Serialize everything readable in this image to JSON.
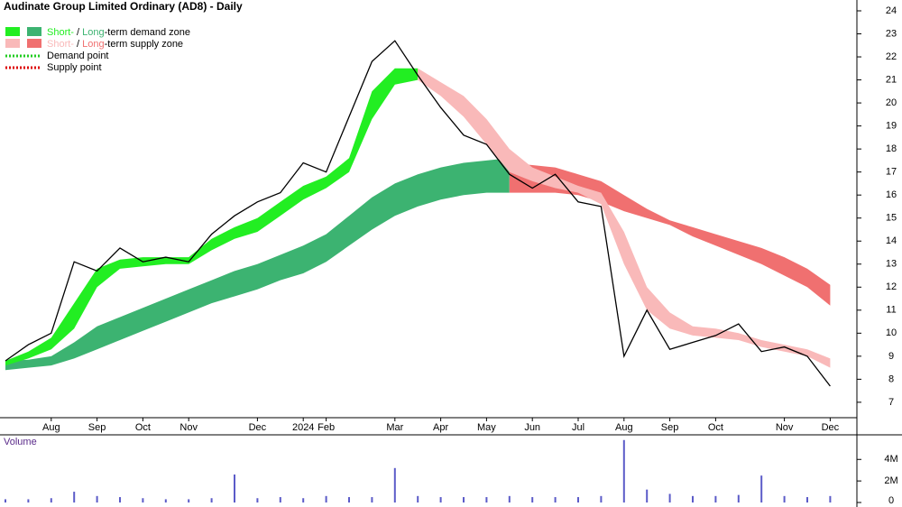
{
  "chart_data": {
    "type": "line",
    "title": "Audinate Group Limited Ordinary (AD8) - Daily",
    "categories": [
      null,
      null,
      "Aug",
      null,
      "Sep",
      null,
      "Oct",
      null,
      "Nov",
      null,
      null,
      "Dec",
      null,
      "2024",
      "Feb",
      null,
      null,
      "Mar",
      null,
      "Apr",
      null,
      "May",
      null,
      "Jun",
      null,
      "Jul",
      null,
      "Aug",
      null,
      "Sep",
      null,
      "Oct",
      null,
      null,
      "Nov",
      null,
      "Dec"
    ],
    "values": [
      8.8,
      9.5,
      10.0,
      13.1,
      12.7,
      13.7,
      13.1,
      13.3,
      13.1,
      14.3,
      15.1,
      15.7,
      16.1,
      17.4,
      17.0,
      19.4,
      21.8,
      22.7,
      21.2,
      19.8,
      18.6,
      18.2,
      16.9,
      16.3,
      16.9,
      15.7,
      15.5,
      9.0,
      11.0,
      9.3,
      9.6,
      9.9,
      10.4,
      9.2,
      9.4,
      9.0,
      7.7
    ],
    "color": "#000000",
    "ylim": [
      6.33,
      24.47
    ],
    "yticks": [
      7,
      8,
      9,
      10,
      11,
      12,
      13,
      14,
      15,
      16,
      17,
      18,
      19,
      20,
      21,
      22,
      23,
      24
    ],
    "demand_zone": {
      "label_parts": [
        "Short-",
        " / ",
        "Long",
        "-term demand zone"
      ],
      "short": {
        "color": "#22ee22",
        "lower": [
          8.6,
          8.9,
          9.3,
          10.2,
          12.0,
          12.8,
          12.9,
          13.0,
          13.0,
          13.6,
          14.1,
          14.4,
          15.1,
          15.8,
          16.3,
          17.0,
          19.3,
          20.8,
          21.0,
          null,
          null,
          null,
          null,
          null,
          null,
          null,
          null,
          null,
          null,
          null,
          null,
          null,
          null,
          null,
          null,
          null,
          null
        ],
        "upper": [
          8.8,
          9.2,
          9.8,
          11.3,
          12.8,
          13.2,
          13.3,
          13.3,
          13.3,
          14.1,
          14.6,
          15.0,
          15.7,
          16.4,
          16.8,
          17.6,
          20.5,
          21.5,
          21.5,
          null,
          null,
          null,
          null,
          null,
          null,
          null,
          null,
          null,
          null,
          null,
          null,
          null,
          null,
          null,
          null,
          null,
          null
        ]
      },
      "long": {
        "color": "#3cb371",
        "lower": [
          8.4,
          8.5,
          8.6,
          8.9,
          9.3,
          9.7,
          10.1,
          10.5,
          10.9,
          11.3,
          11.6,
          11.9,
          12.3,
          12.6,
          13.1,
          13.8,
          14.5,
          15.1,
          15.5,
          15.8,
          16.0,
          16.1,
          16.1,
          null,
          null,
          null,
          null,
          null,
          null,
          null,
          null,
          null,
          null,
          null,
          null,
          null,
          null
        ],
        "upper": [
          8.8,
          8.85,
          9.0,
          9.6,
          10.3,
          10.7,
          11.1,
          11.5,
          11.9,
          12.3,
          12.7,
          13.0,
          13.4,
          13.8,
          14.3,
          15.1,
          15.9,
          16.5,
          16.9,
          17.2,
          17.4,
          17.5,
          17.6,
          null,
          null,
          null,
          null,
          null,
          null,
          null,
          null,
          null,
          null,
          null,
          null,
          null,
          null
        ]
      }
    },
    "supply_zone": {
      "label_parts": [
        "Short-",
        " / ",
        "Long",
        "-term supply zone"
      ],
      "short": {
        "color": "#f9b9b9",
        "lower": [
          null,
          null,
          null,
          null,
          null,
          null,
          null,
          null,
          null,
          null,
          null,
          null,
          null,
          null,
          null,
          null,
          null,
          null,
          21.0,
          20.3,
          19.4,
          18.2,
          17.0,
          16.6,
          16.3,
          16.1,
          15.6,
          13.0,
          11.0,
          10.2,
          9.9,
          9.8,
          9.7,
          9.4,
          9.2,
          9.0,
          8.5
        ],
        "upper": [
          null,
          null,
          null,
          null,
          null,
          null,
          null,
          null,
          null,
          null,
          null,
          null,
          null,
          null,
          null,
          null,
          null,
          null,
          21.5,
          20.9,
          20.3,
          19.3,
          18.0,
          17.2,
          16.8,
          16.4,
          16.1,
          14.4,
          12.0,
          10.9,
          10.3,
          10.2,
          10.0,
          9.7,
          9.5,
          9.3,
          8.9
        ]
      },
      "long": {
        "color": "#f07070",
        "lower": [
          null,
          null,
          null,
          null,
          null,
          null,
          null,
          null,
          null,
          null,
          null,
          null,
          null,
          null,
          null,
          null,
          null,
          null,
          null,
          null,
          null,
          null,
          16.1,
          16.1,
          16.1,
          16.0,
          15.7,
          15.3,
          15.0,
          14.7,
          14.2,
          13.8,
          13.4,
          13.0,
          12.5,
          12.0,
          11.2
        ],
        "upper": [
          null,
          null,
          null,
          null,
          null,
          null,
          null,
          null,
          null,
          null,
          null,
          null,
          null,
          null,
          null,
          null,
          null,
          null,
          null,
          null,
          null,
          null,
          17.4,
          17.3,
          17.2,
          16.9,
          16.6,
          16.0,
          15.4,
          14.9,
          14.6,
          14.3,
          14.0,
          13.7,
          13.3,
          12.8,
          12.1
        ]
      }
    },
    "demand_point": {
      "label": "Demand point",
      "color": "#22cc22"
    },
    "supply_point": {
      "label": "Supply point",
      "color": "#dd0000"
    },
    "volume": {
      "label": "Volume",
      "color": "#5b5bc8",
      "values": [
        300000,
        300000,
        400000,
        1000000,
        600000,
        500000,
        400000,
        300000,
        300000,
        400000,
        2600000,
        400000,
        500000,
        400000,
        600000,
        500000,
        500000,
        3200000,
        600000,
        500000,
        500000,
        500000,
        600000,
        500000,
        500000,
        500000,
        600000,
        5800000,
        1200000,
        800000,
        600000,
        600000,
        700000,
        2500000,
        600000,
        500000,
        600000
      ],
      "ylim": [
        0,
        6200000
      ],
      "yticks": [
        0,
        {
          "value": 2000000,
          "label": "2M"
        },
        {
          "value": 4000000,
          "label": "4M"
        }
      ]
    }
  }
}
